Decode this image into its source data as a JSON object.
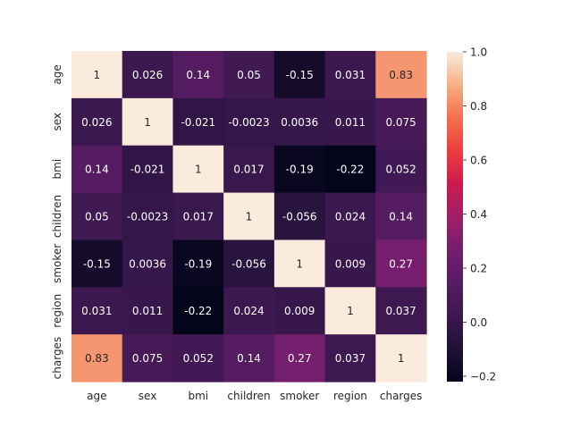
{
  "chart_data": {
    "type": "heatmap",
    "title": "",
    "xlabel": "",
    "ylabel": "",
    "x_labels": [
      "age",
      "sex",
      "bmi",
      "children",
      "smoker",
      "region",
      "charges"
    ],
    "y_labels": [
      "age",
      "sex",
      "bmi",
      "children",
      "smoker",
      "region",
      "charges"
    ],
    "values": [
      [
        1,
        0.026,
        0.14,
        0.05,
        -0.15,
        0.031,
        0.83
      ],
      [
        0.026,
        1,
        -0.021,
        -0.0023,
        0.0036,
        0.011,
        0.075
      ],
      [
        0.14,
        -0.021,
        1,
        0.017,
        -0.19,
        -0.22,
        0.052
      ],
      [
        0.05,
        -0.0023,
        0.017,
        1,
        -0.056,
        0.024,
        0.14
      ],
      [
        -0.15,
        0.0036,
        -0.19,
        -0.056,
        1,
        0.009,
        0.27
      ],
      [
        0.031,
        0.011,
        -0.22,
        0.024,
        0.009,
        1,
        0.037
      ],
      [
        0.83,
        0.075,
        0.052,
        0.14,
        0.27,
        0.037,
        1
      ]
    ],
    "annotations": [
      [
        "1",
        "0.026",
        "0.14",
        "0.05",
        "-0.15",
        "0.031",
        "0.83"
      ],
      [
        "0.026",
        "1",
        "-0.021",
        "-0.0023",
        "0.0036",
        "0.011",
        "0.075"
      ],
      [
        "0.14",
        "-0.021",
        "1",
        "0.017",
        "-0.19",
        "-0.22",
        "0.052"
      ],
      [
        "0.05",
        "-0.0023",
        "0.017",
        "1",
        "-0.056",
        "0.024",
        "0.14"
      ],
      [
        "-0.15",
        "0.0036",
        "-0.19",
        "-0.056",
        "1",
        "0.009",
        "0.27"
      ],
      [
        "0.031",
        "0.011",
        "-0.22",
        "0.024",
        "0.009",
        "1",
        "0.037"
      ],
      [
        "0.83",
        "0.075",
        "0.052",
        "0.14",
        "0.27",
        "0.037",
        "1"
      ]
    ],
    "colormap": "rocket",
    "colorbar": {
      "min": -0.22,
      "max": 1,
      "ticks": [
        1.0,
        0.8,
        0.6,
        0.4,
        0.2,
        0.0,
        -0.2
      ],
      "tick_labels": [
        "1.0",
        "0.8",
        "0.6",
        "0.4",
        "0.2",
        "0.0",
        "−0.2"
      ]
    },
    "grid": false,
    "legend": "colorbar-right"
  }
}
